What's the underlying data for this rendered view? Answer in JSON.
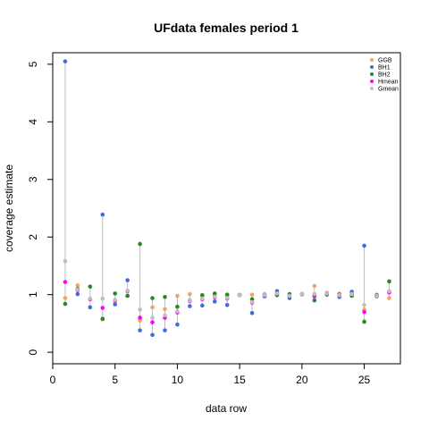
{
  "chart_data": {
    "type": "scatter",
    "title": "UFdata females period 1",
    "xlabel": "data row",
    "ylabel": "coverage estimate",
    "xlim": [
      0.0,
      27.9
    ],
    "ylim": [
      -0.2,
      5.2
    ],
    "x_ticks": [
      0,
      5,
      10,
      15,
      20,
      25
    ],
    "y_ticks": [
      0,
      1,
      2,
      3,
      4,
      5
    ],
    "grid": false,
    "legend_position": "top-right",
    "series": [
      {
        "name": "GGB",
        "color": "#f4a460",
        "x": [
          1,
          2,
          3,
          4,
          5,
          6,
          7,
          8,
          9,
          10,
          11,
          12,
          13,
          14,
          15,
          16,
          17,
          18,
          19,
          20,
          21,
          22,
          23,
          24,
          25,
          26,
          27
        ],
        "y": [
          0.94,
          1.16,
          0.92,
          0.57,
          0.88,
          0.98,
          0.55,
          0.78,
          0.75,
          0.98,
          1.01,
          0.98,
          0.98,
          0.98,
          1.0,
          1.0,
          1.01,
          1.0,
          0.99,
          1.0,
          1.15,
          1.03,
          1.02,
          1.0,
          0.74,
          1.0,
          0.94
        ]
      },
      {
        "name": "BH1",
        "color": "#4169e1",
        "x": [
          1,
          2,
          3,
          4,
          5,
          6,
          7,
          8,
          9,
          10,
          11,
          12,
          13,
          14,
          15,
          16,
          17,
          18,
          19,
          20,
          21,
          22,
          23,
          24,
          25,
          26,
          27
        ],
        "y": [
          5.05,
          1.01,
          0.78,
          2.39,
          0.83,
          1.25,
          0.38,
          0.3,
          0.38,
          0.48,
          0.8,
          0.81,
          0.88,
          0.82,
          0.99,
          0.68,
          0.97,
          1.06,
          0.94,
          1.01,
          0.97,
          1.02,
          0.96,
          1.05,
          1.85,
          0.97,
          1.05
        ]
      },
      {
        "name": "BH2",
        "color": "#228b22",
        "x": [
          1,
          2,
          3,
          4,
          5,
          6,
          7,
          8,
          9,
          10,
          11,
          12,
          13,
          14,
          15,
          16,
          17,
          18,
          19,
          20,
          21,
          22,
          23,
          24,
          25,
          26,
          27
        ],
        "y": [
          0.84,
          1.1,
          1.14,
          0.58,
          1.02,
          0.98,
          1.88,
          0.94,
          0.96,
          0.79,
          0.9,
          0.99,
          1.02,
          1.0,
          0.99,
          0.92,
          0.99,
          0.99,
          1.01,
          1.01,
          0.9,
          1.0,
          1.0,
          0.98,
          0.53,
          0.99,
          1.23
        ]
      },
      {
        "name": "Hmean",
        "color": "#ff00ff",
        "x": [
          1,
          2,
          3,
          4,
          5,
          6,
          7,
          8,
          9,
          10,
          11,
          12,
          13,
          14,
          15,
          16,
          17,
          18,
          19,
          20,
          21,
          22,
          23,
          24,
          25,
          26,
          27
        ],
        "y": [
          1.22,
          1.08,
          0.92,
          0.77,
          0.9,
          1.06,
          0.6,
          0.52,
          0.6,
          0.69,
          0.89,
          0.92,
          0.95,
          0.93,
          0.99,
          0.86,
          0.99,
          1.02,
          0.98,
          1.01,
          0.98,
          1.02,
          0.99,
          1.01,
          0.7,
          0.98,
          1.04
        ]
      },
      {
        "name": "Gmean",
        "color": "#bebebe",
        "x": [
          1,
          2,
          3,
          4,
          5,
          6,
          7,
          8,
          9,
          10,
          11,
          12,
          13,
          14,
          15,
          16,
          17,
          18,
          19,
          20,
          21,
          22,
          23,
          24,
          25,
          26,
          27
        ],
        "y": [
          1.58,
          1.09,
          0.93,
          0.93,
          0.91,
          1.07,
          0.74,
          0.6,
          0.64,
          0.71,
          0.9,
          0.93,
          0.96,
          0.94,
          0.99,
          0.87,
          0.99,
          1.02,
          0.98,
          1.01,
          1.01,
          1.02,
          0.99,
          1.01,
          0.82,
          0.98,
          1.06
        ]
      }
    ]
  }
}
